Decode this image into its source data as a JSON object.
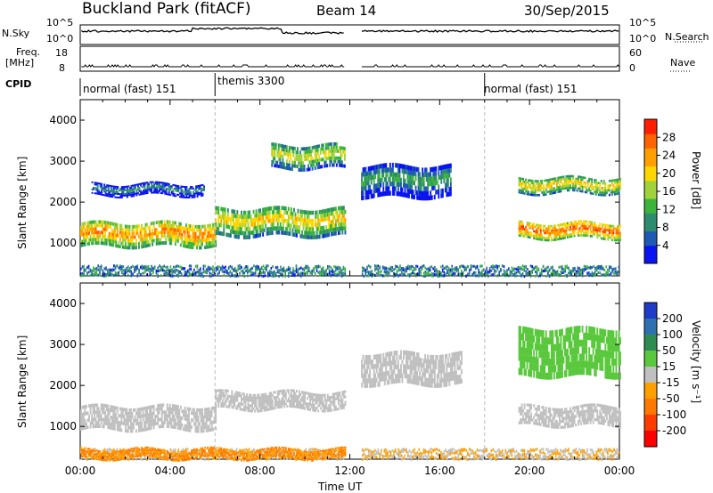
{
  "header": {
    "title": "Buckland Park (fitACF)",
    "beam": "Beam 14",
    "date": "30/Sep/2015"
  },
  "top_panels": {
    "nsky_label": "N.Sky",
    "nsky_ticks": [
      "10^5",
      "10^0"
    ],
    "nsearch_label": "N.Search",
    "nsearch_ticks": [
      "10^5",
      "10^0"
    ],
    "freq_label": "Freq.",
    "freq_unit": "[MHz]",
    "freq_ticks": [
      "18",
      "8"
    ],
    "nave_label": "Nave",
    "nave_ticks": [
      "60",
      "0"
    ],
    "cpid_label": "CPID"
  },
  "cpid_segments": [
    {
      "label": "normal (fast) 151",
      "start_hour": 0,
      "end_hour": 6
    },
    {
      "label": "themis 3300",
      "start_hour": 6,
      "end_hour": 18
    },
    {
      "label": "normal (fast) 151",
      "start_hour": 18,
      "end_hour": 24
    }
  ],
  "data_gap_hours": [
    11.8,
    12.5
  ],
  "chart_data": [
    {
      "type": "heatmap",
      "name": "power",
      "ylabel": "Slant Range [km]",
      "yticks": [
        1000,
        2000,
        3000,
        4000
      ],
      "ylim": [
        200,
        4500
      ],
      "xlim": [
        0,
        24
      ],
      "colorbar": {
        "label": "Power [dB]",
        "ticks": [
          "4",
          "8",
          "12",
          "16",
          "20",
          "24",
          "28"
        ],
        "colors": [
          "#0a14f0",
          "#1e5ab4",
          "#2e8c6e",
          "#3cb43c",
          "#a0d23c",
          "#ffd700",
          "#ffa000",
          "#ff6400",
          "#ff1e00"
        ]
      },
      "echo_bands": [
        {
          "start_hour": 0.0,
          "end_hour": 6.0,
          "range_km": [
            900,
            1500
          ],
          "power_db": 26
        },
        {
          "start_hour": 0.5,
          "end_hour": 5.5,
          "range_km": [
            2150,
            2450
          ],
          "power_db": 12
        },
        {
          "start_hour": 6.0,
          "end_hour": 11.8,
          "range_km": [
            1150,
            1850
          ],
          "power_db": 22
        },
        {
          "start_hour": 8.5,
          "end_hour": 11.8,
          "range_km": [
            2800,
            3400
          ],
          "power_db": 20
        },
        {
          "start_hour": 12.5,
          "end_hour": 16.5,
          "range_km": [
            2100,
            2900
          ],
          "power_db": 14
        },
        {
          "start_hour": 19.5,
          "end_hour": 24.0,
          "range_km": [
            1100,
            1500
          ],
          "power_db": 28
        },
        {
          "start_hour": 19.5,
          "end_hour": 24.0,
          "range_km": [
            2200,
            2600
          ],
          "power_db": 22
        }
      ]
    },
    {
      "type": "heatmap",
      "name": "velocity",
      "xlabel": "Time UT",
      "xticks": [
        "00:00",
        "04:00",
        "08:00",
        "12:00",
        "16:00",
        "20:00",
        "00:00"
      ],
      "ylabel": "Slant Range [km]",
      "yticks": [
        1000,
        2000,
        3000,
        4000
      ],
      "ylim": [
        200,
        4500
      ],
      "xlim": [
        0,
        24
      ],
      "colorbar": {
        "label": "Velocity [m s⁻¹]",
        "ticks": [
          "200",
          "100",
          "50",
          "15",
          "-15",
          "-50",
          "-100",
          "-200"
        ],
        "colors": [
          "#1e3cc8",
          "#2e70b0",
          "#2e8c50",
          "#5ac83c",
          "#c0c0c0",
          "#ffa000",
          "#ff7800",
          "#ff3c00",
          "#ff0000"
        ]
      },
      "echo_bands": [
        {
          "start_hour": 0.0,
          "end_hour": 6.0,
          "range_km": [
            900,
            1500
          ],
          "velocity": 0
        },
        {
          "start_hour": 6.0,
          "end_hour": 11.8,
          "range_km": [
            1400,
            1850
          ],
          "velocity": 0
        },
        {
          "start_hour": 0.0,
          "end_hour": 11.8,
          "range_km": [
            200,
            450
          ],
          "velocity": -50
        },
        {
          "start_hour": 12.5,
          "end_hour": 17.0,
          "range_km": [
            2000,
            2800
          ],
          "velocity": 0
        },
        {
          "start_hour": 19.5,
          "end_hour": 24.0,
          "range_km": [
            1000,
            1500
          ],
          "velocity": 0
        },
        {
          "start_hour": 19.5,
          "end_hour": 24.0,
          "range_km": [
            2200,
            3400
          ],
          "velocity": 30
        }
      ]
    }
  ]
}
